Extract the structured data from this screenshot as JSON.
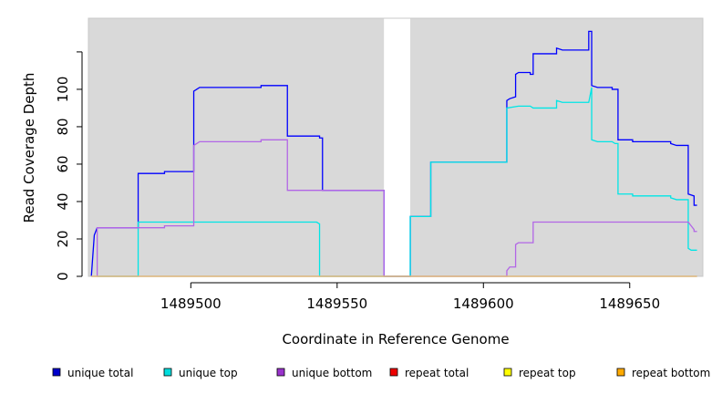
{
  "chart_data": {
    "type": "line",
    "title": "",
    "xlabel": "Coordinate in Reference Genome",
    "ylabel": "Read Coverage Depth",
    "xlim": [
      1489465,
      1489675
    ],
    "ylim": [
      0,
      138
    ],
    "x_ticks": [
      1489500,
      1489550,
      1489600,
      1489650
    ],
    "y_ticks": [
      0,
      20,
      40,
      60,
      80,
      100
    ],
    "gap": [
      1489566,
      1489575
    ],
    "background_color": "#d9d9d9",
    "grid": false,
    "legend_position": "bottom",
    "series": [
      {
        "name": "unique total",
        "color": "#0000ff",
        "legend_color": "#0000cc",
        "points": [
          [
            1489466,
            0
          ],
          [
            1489467,
            22
          ],
          [
            1489468,
            26
          ],
          [
            1489482,
            26
          ],
          [
            1489482,
            55
          ],
          [
            1489491,
            55
          ],
          [
            1489491,
            56
          ],
          [
            1489501,
            56
          ],
          [
            1489501,
            99
          ],
          [
            1489502,
            100
          ],
          [
            1489503,
            101
          ],
          [
            1489524,
            101
          ],
          [
            1489524,
            102
          ],
          [
            1489533,
            102
          ],
          [
            1489533,
            75
          ],
          [
            1489544,
            75
          ],
          [
            1489544,
            74
          ],
          [
            1489545,
            74
          ],
          [
            1489545,
            46
          ],
          [
            1489566,
            46
          ],
          [
            1489566,
            0
          ],
          [
            1489575,
            0
          ],
          [
            1489575,
            32
          ],
          [
            1489582,
            32
          ],
          [
            1489582,
            61
          ],
          [
            1489608,
            61
          ],
          [
            1489608,
            94
          ],
          [
            1489609,
            95
          ],
          [
            1489611,
            96
          ],
          [
            1489611,
            108
          ],
          [
            1489612,
            109
          ],
          [
            1489616,
            109
          ],
          [
            1489616,
            108
          ],
          [
            1489617,
            108
          ],
          [
            1489617,
            119
          ],
          [
            1489625,
            119
          ],
          [
            1489625,
            122
          ],
          [
            1489627,
            121
          ],
          [
            1489636,
            121
          ],
          [
            1489636,
            131
          ],
          [
            1489637,
            131
          ],
          [
            1489637,
            102
          ],
          [
            1489639,
            101
          ],
          [
            1489644,
            101
          ],
          [
            1489644,
            100
          ],
          [
            1489646,
            100
          ],
          [
            1489646,
            73
          ],
          [
            1489651,
            73
          ],
          [
            1489651,
            72
          ],
          [
            1489664,
            72
          ],
          [
            1489664,
            71
          ],
          [
            1489666,
            70
          ],
          [
            1489670,
            70
          ],
          [
            1489670,
            44
          ],
          [
            1489672,
            43
          ],
          [
            1489672,
            38
          ],
          [
            1489673,
            38
          ]
        ]
      },
      {
        "name": "unique top",
        "color": "#00e5e5",
        "legend_color": "#00dddd",
        "points": [
          [
            1489468,
            0
          ],
          [
            1489482,
            0
          ],
          [
            1489482,
            29
          ],
          [
            1489543,
            29
          ],
          [
            1489544,
            28
          ],
          [
            1489544,
            0
          ],
          [
            1489566,
            0
          ],
          [
            1489575,
            0
          ],
          [
            1489575,
            32
          ],
          [
            1489582,
            32
          ],
          [
            1489582,
            61
          ],
          [
            1489608,
            61
          ],
          [
            1489608,
            90
          ],
          [
            1489612,
            91
          ],
          [
            1489616,
            91
          ],
          [
            1489617,
            90
          ],
          [
            1489625,
            90
          ],
          [
            1489625,
            94
          ],
          [
            1489627,
            93
          ],
          [
            1489636,
            93
          ],
          [
            1489637,
            101
          ],
          [
            1489637,
            73
          ],
          [
            1489639,
            72
          ],
          [
            1489644,
            72
          ],
          [
            1489645,
            71
          ],
          [
            1489646,
            71
          ],
          [
            1489646,
            44
          ],
          [
            1489651,
            44
          ],
          [
            1489651,
            43
          ],
          [
            1489664,
            43
          ],
          [
            1489664,
            42
          ],
          [
            1489666,
            41
          ],
          [
            1489670,
            41
          ],
          [
            1489670,
            15
          ],
          [
            1489671,
            14
          ],
          [
            1489673,
            14
          ]
        ]
      },
      {
        "name": "unique bottom",
        "color": "#b266e6",
        "legend_color": "#9933cc",
        "points": [
          [
            1489468,
            0
          ],
          [
            1489468,
            26
          ],
          [
            1489491,
            26
          ],
          [
            1489491,
            27
          ],
          [
            1489501,
            27
          ],
          [
            1489501,
            70
          ],
          [
            1489502,
            71
          ],
          [
            1489503,
            72
          ],
          [
            1489524,
            72
          ],
          [
            1489524,
            73
          ],
          [
            1489533,
            73
          ],
          [
            1489533,
            46
          ],
          [
            1489566,
            46
          ],
          [
            1489566,
            0
          ],
          [
            1489575,
            0
          ],
          [
            1489608,
            0
          ],
          [
            1489608,
            3
          ],
          [
            1489609,
            5
          ],
          [
            1489611,
            5
          ],
          [
            1489611,
            17
          ],
          [
            1489612,
            18
          ],
          [
            1489617,
            18
          ],
          [
            1489617,
            29
          ],
          [
            1489670,
            29
          ],
          [
            1489672,
            25
          ],
          [
            1489672,
            24
          ],
          [
            1489673,
            24
          ]
        ]
      },
      {
        "name": "repeat total",
        "color": "#ff0000",
        "legend_color": "#ee0000",
        "points": [
          [
            1489466,
            0
          ],
          [
            1489566,
            0
          ],
          [
            1489575,
            0
          ],
          [
            1489673,
            0
          ]
        ]
      },
      {
        "name": "repeat top",
        "color": "#ffff00",
        "legend_color": "#ffff00",
        "points": [
          [
            1489466,
            0
          ],
          [
            1489566,
            0
          ],
          [
            1489575,
            0
          ],
          [
            1489673,
            0
          ]
        ]
      },
      {
        "name": "repeat bottom",
        "color": "#ffa500",
        "legend_color": "#ffaa00",
        "points": [
          [
            1489466,
            0
          ],
          [
            1489566,
            0
          ],
          [
            1489575,
            0
          ],
          [
            1489673,
            0
          ]
        ]
      }
    ]
  }
}
